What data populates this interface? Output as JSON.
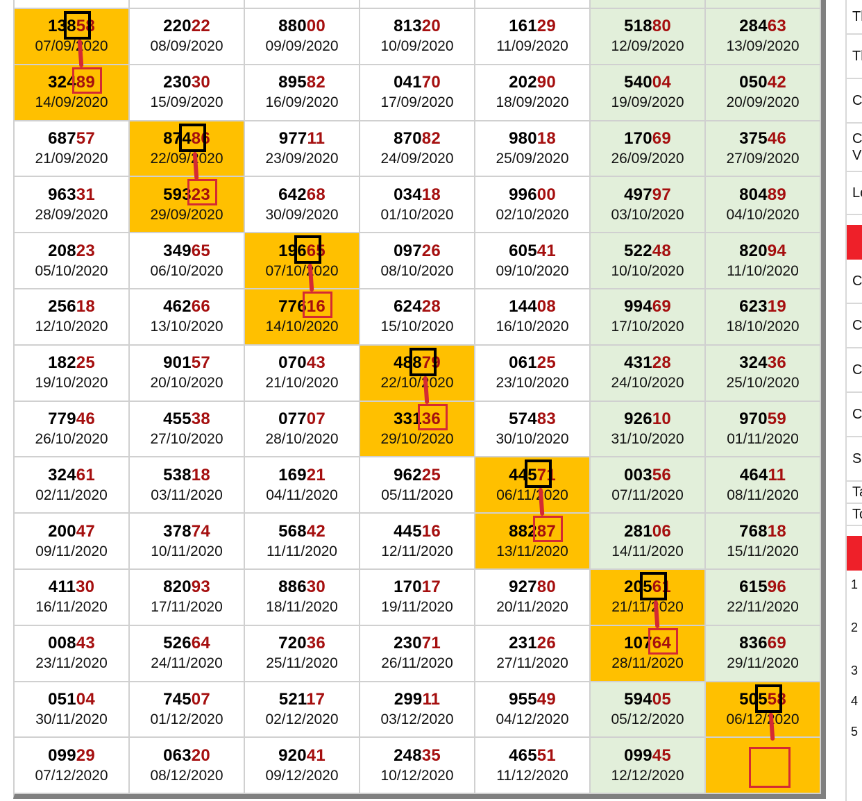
{
  "colors": {
    "highlight": "#ffc000",
    "weekend": "#e2efda",
    "digit_red": "#a50f0f",
    "marker_red": "#d42a33"
  },
  "weekend_columns": [
    5,
    6
  ],
  "rows": [
    [
      [
        "13858",
        "07/09/2020"
      ],
      [
        "22022",
        "08/09/2020"
      ],
      [
        "88000",
        "09/09/2020"
      ],
      [
        "81320",
        "10/09/2020"
      ],
      [
        "16129",
        "11/09/2020"
      ],
      [
        "51880",
        "12/09/2020"
      ],
      [
        "28463",
        "13/09/2020"
      ]
    ],
    [
      [
        "32489",
        "14/09/2020"
      ],
      [
        "23030",
        "15/09/2020"
      ],
      [
        "89582",
        "16/09/2020"
      ],
      [
        "04170",
        "17/09/2020"
      ],
      [
        "20290",
        "18/09/2020"
      ],
      [
        "54004",
        "19/09/2020"
      ],
      [
        "05042",
        "20/09/2020"
      ]
    ],
    [
      [
        "68757",
        "21/09/2020"
      ],
      [
        "87486",
        "22/09/2020"
      ],
      [
        "97711",
        "23/09/2020"
      ],
      [
        "87082",
        "24/09/2020"
      ],
      [
        "98018",
        "25/09/2020"
      ],
      [
        "17069",
        "26/09/2020"
      ],
      [
        "37546",
        "27/09/2020"
      ]
    ],
    [
      [
        "96331",
        "28/09/2020"
      ],
      [
        "59323",
        "29/09/2020"
      ],
      [
        "64268",
        "30/09/2020"
      ],
      [
        "03418",
        "01/10/2020"
      ],
      [
        "99600",
        "02/10/2020"
      ],
      [
        "49797",
        "03/10/2020"
      ],
      [
        "80489",
        "04/10/2020"
      ]
    ],
    [
      [
        "20823",
        "05/10/2020"
      ],
      [
        "34965",
        "06/10/2020"
      ],
      [
        "19665",
        "07/10/2020"
      ],
      [
        "09726",
        "08/10/2020"
      ],
      [
        "60541",
        "09/10/2020"
      ],
      [
        "52248",
        "10/10/2020"
      ],
      [
        "82094",
        "11/10/2020"
      ]
    ],
    [
      [
        "25618",
        "12/10/2020"
      ],
      [
        "46266",
        "13/10/2020"
      ],
      [
        "77616",
        "14/10/2020"
      ],
      [
        "62428",
        "15/10/2020"
      ],
      [
        "14408",
        "16/10/2020"
      ],
      [
        "99469",
        "17/10/2020"
      ],
      [
        "62319",
        "18/10/2020"
      ]
    ],
    [
      [
        "18225",
        "19/10/2020"
      ],
      [
        "90157",
        "20/10/2020"
      ],
      [
        "07043",
        "21/10/2020"
      ],
      [
        "48879",
        "22/10/2020"
      ],
      [
        "06125",
        "23/10/2020"
      ],
      [
        "43128",
        "24/10/2020"
      ],
      [
        "32436",
        "25/10/2020"
      ]
    ],
    [
      [
        "77946",
        "26/10/2020"
      ],
      [
        "45538",
        "27/10/2020"
      ],
      [
        "07707",
        "28/10/2020"
      ],
      [
        "33136",
        "29/10/2020"
      ],
      [
        "57483",
        "30/10/2020"
      ],
      [
        "92610",
        "31/10/2020"
      ],
      [
        "97059",
        "01/11/2020"
      ]
    ],
    [
      [
        "32461",
        "02/11/2020"
      ],
      [
        "53818",
        "03/11/2020"
      ],
      [
        "16921",
        "04/11/2020"
      ],
      [
        "96225",
        "05/11/2020"
      ],
      [
        "44571",
        "06/11/2020"
      ],
      [
        "00356",
        "07/11/2020"
      ],
      [
        "46411",
        "08/11/2020"
      ]
    ],
    [
      [
        "20047",
        "09/11/2020"
      ],
      [
        "37874",
        "10/11/2020"
      ],
      [
        "56842",
        "11/11/2020"
      ],
      [
        "44516",
        "12/11/2020"
      ],
      [
        "88287",
        "13/11/2020"
      ],
      [
        "28106",
        "14/11/2020"
      ],
      [
        "76818",
        "15/11/2020"
      ]
    ],
    [
      [
        "41130",
        "16/11/2020"
      ],
      [
        "82093",
        "17/11/2020"
      ],
      [
        "88630",
        "18/11/2020"
      ],
      [
        "17017",
        "19/11/2020"
      ],
      [
        "92780",
        "20/11/2020"
      ],
      [
        "20561",
        "21/11/2020"
      ],
      [
        "61596",
        "22/11/2020"
      ]
    ],
    [
      [
        "00843",
        "23/11/2020"
      ],
      [
        "52664",
        "24/11/2020"
      ],
      [
        "72036",
        "25/11/2020"
      ],
      [
        "23071",
        "26/11/2020"
      ],
      [
        "23126",
        "27/11/2020"
      ],
      [
        "10764",
        "28/11/2020"
      ],
      [
        "83669",
        "29/11/2020"
      ]
    ],
    [
      [
        "05104",
        "30/11/2020"
      ],
      [
        "74507",
        "01/12/2020"
      ],
      [
        "52117",
        "02/12/2020"
      ],
      [
        "29911",
        "03/12/2020"
      ],
      [
        "95549",
        "04/12/2020"
      ],
      [
        "59405",
        "05/12/2020"
      ],
      [
        "50558",
        "06/12/2020"
      ]
    ],
    [
      [
        "09929",
        "07/12/2020"
      ],
      [
        "06320",
        "08/12/2020"
      ],
      [
        "92041",
        "09/12/2020"
      ],
      [
        "24835",
        "10/12/2020"
      ],
      [
        "46551",
        "11/12/2020"
      ],
      [
        "09945",
        "12/12/2020"
      ],
      [
        "",
        ""
      ]
    ]
  ],
  "highlight_pairs": [
    [
      0,
      0
    ],
    [
      2,
      1
    ],
    [
      4,
      2
    ],
    [
      6,
      3
    ],
    [
      8,
      4
    ],
    [
      10,
      5
    ],
    [
      12,
      6
    ]
  ],
  "sidebar": {
    "items": [
      "Tl",
      "Tl",
      "C",
      "C\nV",
      "Lo",
      "",
      "C",
      "C",
      "C",
      "C",
      "S",
      "Ta",
      "To",
      ""
    ],
    "numbers": [
      "1",
      "2",
      "3",
      "4",
      "5"
    ]
  }
}
